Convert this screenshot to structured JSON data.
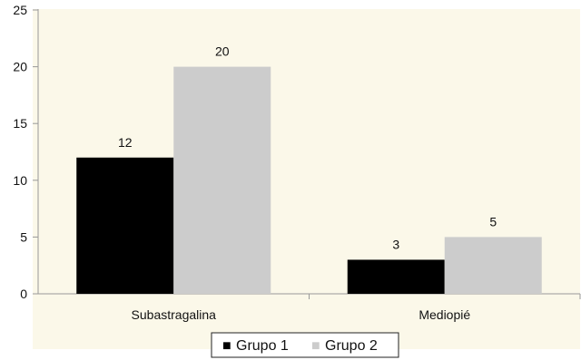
{
  "chart_data": {
    "type": "bar",
    "categories": [
      "Subastragalina",
      "Mediopié"
    ],
    "series": [
      {
        "name": "Grupo 1",
        "values": [
          12,
          3
        ],
        "color": "#000000"
      },
      {
        "name": "Grupo 2",
        "values": [
          20,
          5
        ],
        "color": "#cccccc"
      }
    ],
    "ylim": [
      0,
      25
    ],
    "yticks": [
      0,
      5,
      10,
      15,
      20,
      25
    ],
    "grid": false,
    "legend": "bottom-center",
    "background_color": "#fbf8e9",
    "legend_marker": "■"
  }
}
